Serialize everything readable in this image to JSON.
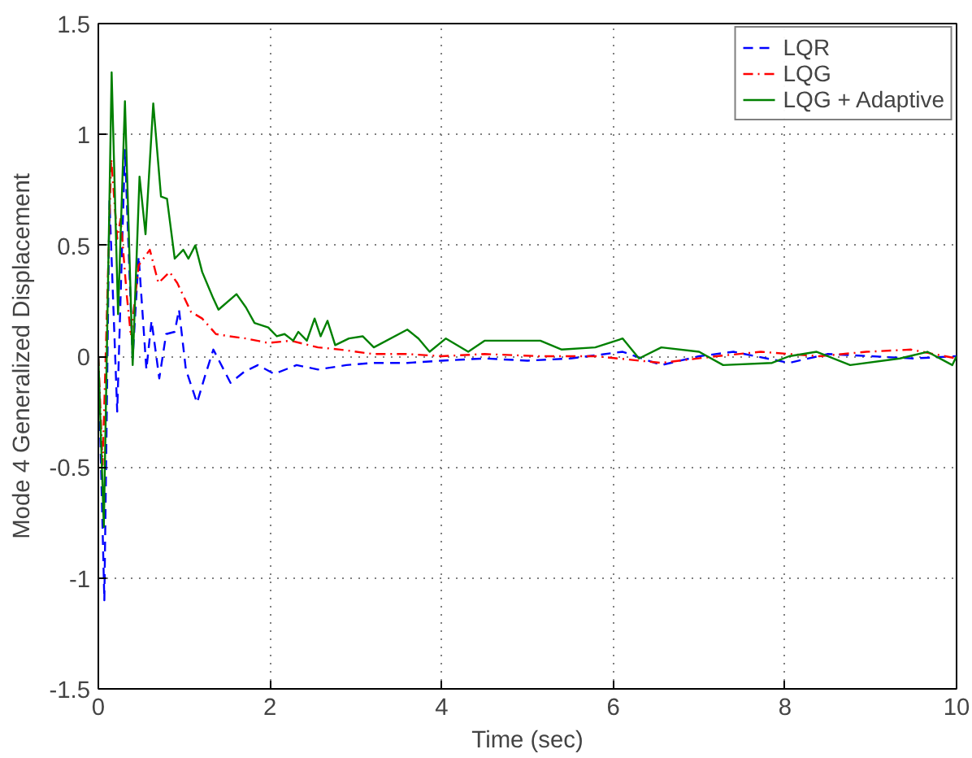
{
  "chart_data": {
    "type": "line",
    "xlabel": "Time (sec)",
    "ylabel": "Mode 4 Generalized Displacement",
    "xlim": [
      0,
      10
    ],
    "ylim": [
      -1.5,
      1.5
    ],
    "xticks": [
      0,
      2,
      4,
      6,
      8,
      10
    ],
    "yticks": [
      -1.5,
      -1,
      -0.5,
      0,
      0.5,
      1,
      1.5
    ],
    "grid": true,
    "legend": "top right",
    "marker": "none",
    "series": [
      {
        "name": "LQR",
        "color": "#0000ff",
        "line_style": "dashed",
        "x": [
          0,
          0.07,
          0.13,
          0.22,
          0.31,
          0.4,
          0.47,
          0.56,
          0.62,
          0.71,
          0.79,
          0.89,
          0.94,
          1.02,
          1.15,
          1.25,
          1.34,
          1.54,
          1.7,
          1.86,
          2.05,
          2.31,
          2.56,
          2.89,
          3.21,
          3.6,
          4.0,
          4.5,
          5.0,
          5.5,
          6.11,
          6.56,
          7.0,
          7.4,
          8.05,
          8.5,
          9.0,
          9.5,
          10
        ],
        "values": [
          0,
          -1.1,
          0.7,
          -0.25,
          0.93,
          -0.01,
          0.45,
          -0.06,
          0.16,
          -0.1,
          0.1,
          0.11,
          0.21,
          -0.06,
          -0.21,
          -0.08,
          0.03,
          -0.12,
          -0.07,
          -0.04,
          -0.08,
          -0.04,
          -0.06,
          -0.04,
          -0.03,
          -0.03,
          -0.02,
          -0.01,
          -0.02,
          -0.01,
          0.02,
          -0.04,
          0.0,
          0.02,
          -0.03,
          0.01,
          0.0,
          -0.01,
          0.0
        ]
      },
      {
        "name": "LQG",
        "color": "#ff0000",
        "line_style": "dashdot",
        "x": [
          0,
          0.05,
          0.15,
          0.22,
          0.26,
          0.33,
          0.38,
          0.47,
          0.6,
          0.7,
          0.83,
          0.92,
          1.08,
          1.21,
          1.37,
          1.53,
          1.72,
          1.98,
          2.24,
          2.56,
          2.82,
          3.2,
          3.6,
          4.0,
          4.5,
          5.15,
          5.8,
          6.56,
          7.2,
          7.72,
          8.4,
          8.95,
          9.47,
          10
        ],
        "values": [
          0,
          -0.49,
          0.89,
          0.53,
          0.62,
          0.28,
          0.09,
          0.41,
          0.48,
          0.33,
          0.38,
          0.33,
          0.2,
          0.17,
          0.1,
          0.09,
          0.08,
          0.06,
          0.07,
          0.04,
          0.03,
          0.01,
          0.01,
          0.0,
          0.01,
          0.0,
          0.0,
          -0.03,
          0.0,
          0.02,
          0.0,
          0.02,
          0.03,
          -0.01
        ]
      },
      {
        "name": "LQG + Adaptive",
        "color": "#008000",
        "line_style": "solid",
        "x": [
          0,
          0.064,
          0.155,
          0.23,
          0.31,
          0.4,
          0.48,
          0.55,
          0.64,
          0.73,
          0.8,
          0.89,
          0.99,
          1.05,
          1.13,
          1.21,
          1.34,
          1.4,
          1.61,
          1.72,
          1.82,
          1.98,
          2.08,
          2.17,
          2.27,
          2.33,
          2.43,
          2.52,
          2.59,
          2.67,
          2.76,
          2.92,
          3.08,
          3.21,
          3.6,
          3.73,
          3.86,
          4.05,
          4.31,
          4.5,
          4.76,
          5.15,
          5.4,
          5.79,
          6.11,
          6.3,
          6.56,
          7.0,
          7.28,
          7.85,
          8.05,
          8.37,
          8.76,
          9.34,
          9.66,
          9.95,
          10
        ],
        "values": [
          0,
          -0.77,
          1.28,
          0.19,
          1.15,
          -0.04,
          0.81,
          0.55,
          1.14,
          0.72,
          0.71,
          0.44,
          0.48,
          0.44,
          0.5,
          0.38,
          0.26,
          0.21,
          0.28,
          0.22,
          0.15,
          0.13,
          0.09,
          0.1,
          0.07,
          0.11,
          0.07,
          0.17,
          0.09,
          0.16,
          0.05,
          0.08,
          0.09,
          0.04,
          0.12,
          0.08,
          0.02,
          0.08,
          0.02,
          0.07,
          0.07,
          0.07,
          0.03,
          0.04,
          0.08,
          -0.01,
          0.04,
          0.02,
          -0.04,
          -0.03,
          0.0,
          0.02,
          -0.04,
          -0.01,
          0.02,
          -0.04,
          0.0
        ]
      }
    ]
  }
}
